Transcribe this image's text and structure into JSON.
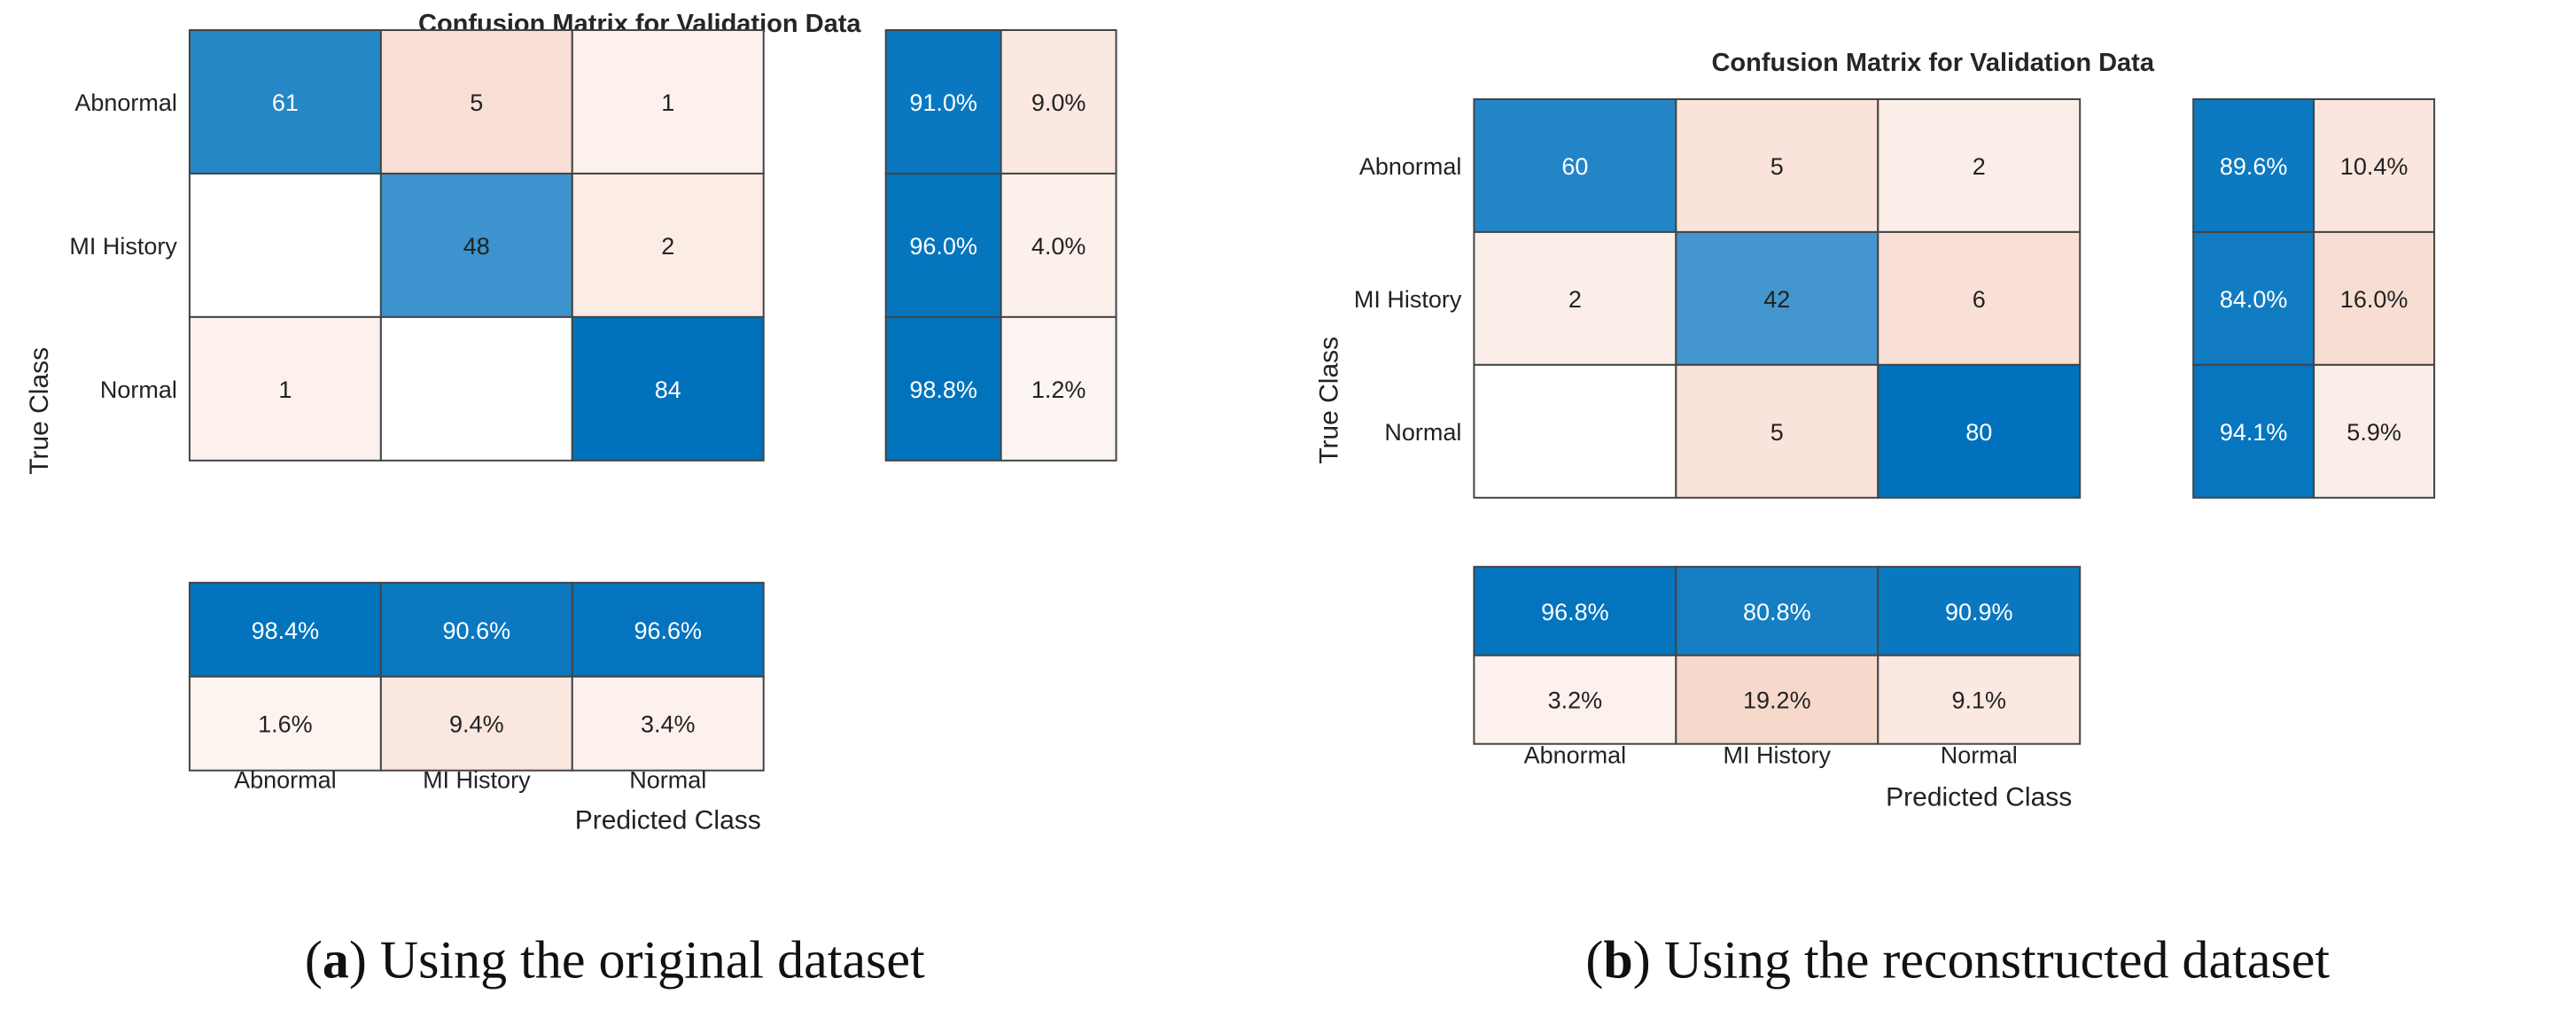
{
  "chart_data": [
    {
      "type": "heatmap",
      "title": "Confusion Matrix for Validation Data",
      "xlabel": "Predicted Class",
      "ylabel": "True Class",
      "classes": [
        "Abnormal",
        "MI History",
        "Normal"
      ],
      "matrix": [
        [
          61,
          5,
          1
        ],
        [
          0,
          48,
          2
        ],
        [
          1,
          0,
          84
        ]
      ],
      "row_summary": [
        [
          "91.0%",
          "9.0%"
        ],
        [
          "96.0%",
          "4.0%"
        ],
        [
          "98.8%",
          "1.2%"
        ]
      ],
      "column_summary": [
        [
          "98.4%",
          "90.6%",
          "96.6%"
        ],
        [
          "1.6%",
          "9.4%",
          "3.4%"
        ]
      ],
      "caption": {
        "label": "a",
        "text": ") Using the original dataset"
      }
    },
    {
      "type": "heatmap",
      "title": "Confusion Matrix for Validation Data",
      "xlabel": "Predicted Class",
      "ylabel": "True Class",
      "classes": [
        "Abnormal",
        "MI History",
        "Normal"
      ],
      "matrix": [
        [
          60,
          5,
          2
        ],
        [
          2,
          42,
          6
        ],
        [
          0,
          5,
          80
        ]
      ],
      "row_summary": [
        [
          "89.6%",
          "10.4%"
        ],
        [
          "84.0%",
          "16.0%"
        ],
        [
          "94.1%",
          "5.9%"
        ]
      ],
      "column_summary": [
        [
          "96.8%",
          "80.8%",
          "90.9%"
        ],
        [
          "3.2%",
          "19.2%",
          "9.1%"
        ]
      ],
      "caption": {
        "label": "b",
        "text": ") Using the reconstructed dataset"
      }
    }
  ],
  "colors": {
    "cell_border": "#444444",
    "text_dark": "#222222",
    "text_light": "#ffffff",
    "blue_full": "#0072bd",
    "red_full": "#d95319",
    "empty": "#ffffff"
  }
}
